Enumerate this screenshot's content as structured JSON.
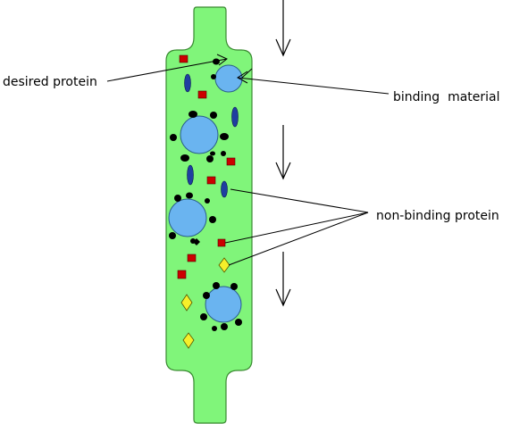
{
  "labels": {
    "desired_protein": "desired protein",
    "binding_material": "binding  material",
    "non_binding_protein": "non-binding protein"
  },
  "colors": {
    "column": "#80f57a",
    "bead": "#6ab4f0",
    "desired": "#000000",
    "red_protein": "#cc0000",
    "blue_protein": "#1f3fa0",
    "yellow_protein": "#f5ef2a"
  },
  "icons": [
    "down-arrow-icon"
  ]
}
